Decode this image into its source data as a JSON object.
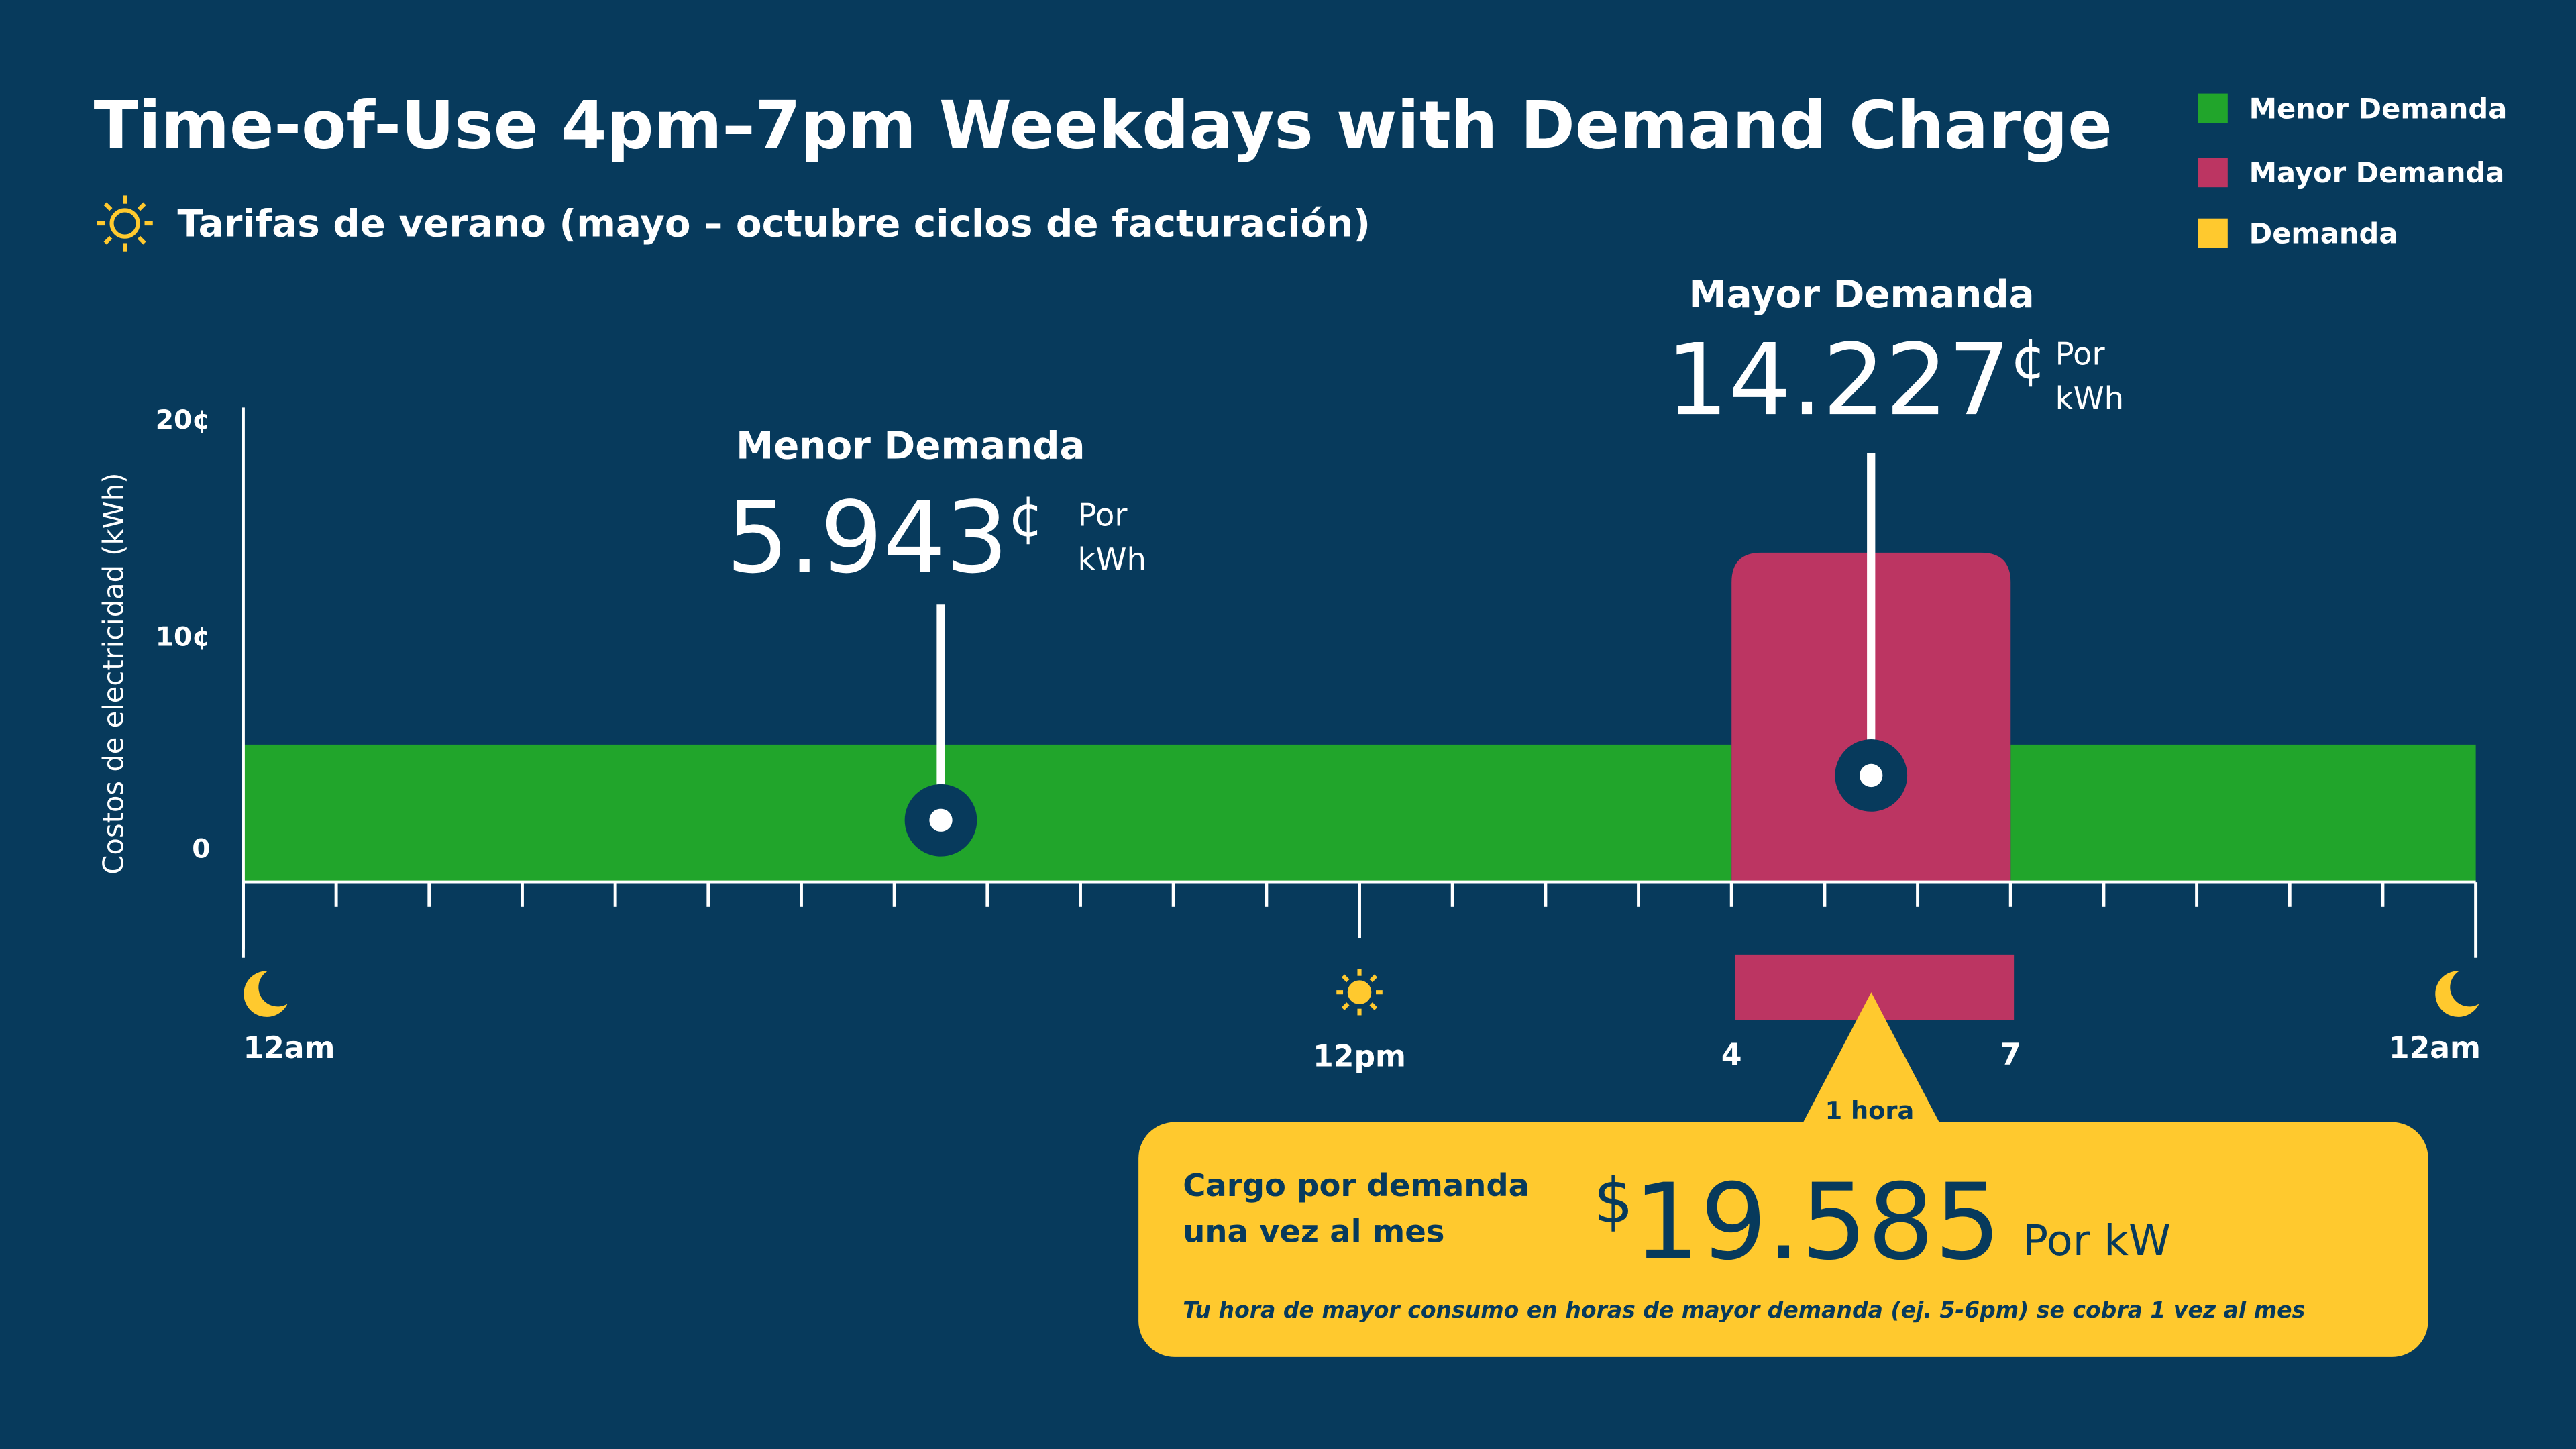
{
  "title": "Time-of-Use 4pm–7pm Weekdays with Demand Charge",
  "subtitle": "Tarifas de verano (mayo – octubre ciclos de facturación)",
  "subtitle_icon": "sun-icon",
  "colors": {
    "background": "#073A5C",
    "menor": "#21A52B",
    "mayor": "#BC3562",
    "demanda": "#FFC92E"
  },
  "legend": [
    {
      "label": "Menor Demanda",
      "color": "#21A52B"
    },
    {
      "label": "Mayor Demanda",
      "color": "#BC3562"
    },
    {
      "label": "Demanda",
      "color": "#FFC92E"
    }
  ],
  "chart_data": {
    "type": "bar",
    "ylabel": "Costos de electricidad (kWh)",
    "yticks": [
      "0",
      "10¢",
      "20¢"
    ],
    "ylim": [
      0,
      20
    ],
    "xlim": [
      0,
      24
    ],
    "xtick_labels": [
      {
        "hour": 0,
        "label": "12am",
        "icon": "moon-icon"
      },
      {
        "hour": 12,
        "label": "12pm",
        "icon": "sun-icon"
      },
      {
        "hour": 16,
        "label": "4"
      },
      {
        "hour": 19,
        "label": "7"
      },
      {
        "hour": 24,
        "label": "12am",
        "icon": "moon-icon"
      }
    ],
    "series": [
      {
        "name": "Menor Demanda",
        "segments": [
          [
            0,
            16
          ],
          [
            19,
            24
          ]
        ],
        "value": 5.943
      },
      {
        "name": "Mayor Demanda",
        "segments": [
          [
            16,
            19
          ]
        ],
        "value": 14.227
      }
    ],
    "annotations": {
      "menor": {
        "label": "Menor Demanda",
        "value": "5.943",
        "unit": "¢",
        "per1": "Por",
        "per2": "kWh"
      },
      "mayor": {
        "label": "Mayor Demanda",
        "value": "14.227",
        "unit": "¢",
        "per1": "Por",
        "per2": "kWh"
      }
    },
    "demand_window": [
      16,
      19
    ]
  },
  "demand_box": {
    "pointer_label": "1 hora",
    "line1": "Cargo por demanda",
    "line2": "una vez al mes",
    "currency": "$",
    "value": "19.585",
    "unit": "Por kW",
    "note": "Tu hora de mayor consumo en horas de mayor demanda (ej. 5-6pm) se cobra 1 vez al mes"
  }
}
